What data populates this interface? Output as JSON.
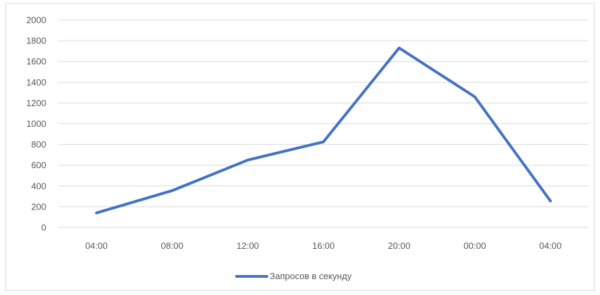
{
  "chart_data": {
    "type": "line",
    "title": "",
    "xlabel": "",
    "ylabel": "",
    "categories": [
      "04:00",
      "08:00",
      "12:00",
      "16:00",
      "20:00",
      "00:00",
      "04:00"
    ],
    "series": [
      {
        "name": "Запросов в секунду",
        "color": "#4472c4",
        "values": [
          140,
          355,
          650,
          825,
          1730,
          1260,
          255
        ]
      }
    ],
    "ylim": [
      0,
      2000
    ],
    "yticks": [
      0,
      200,
      400,
      600,
      800,
      1000,
      1200,
      1400,
      1600,
      1800,
      2000
    ],
    "grid": true,
    "legend_position": "bottom"
  }
}
